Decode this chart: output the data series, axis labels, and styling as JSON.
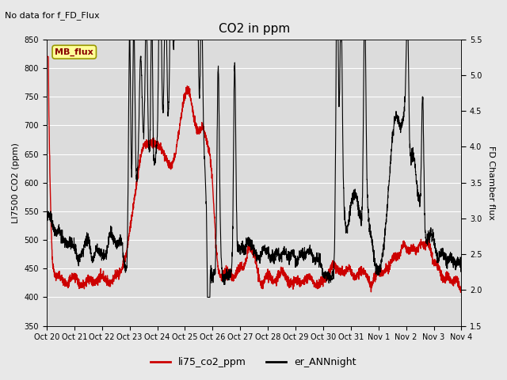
{
  "title": "CO2 in ppm",
  "top_left_text": "No data for f_FD_Flux",
  "ylabel_left": "LI7500 CO2 (ppm)",
  "ylabel_right": "FD Chamber flux",
  "ylim_left": [
    350,
    850
  ],
  "ylim_right": [
    1.5,
    5.5
  ],
  "yticks_left": [
    350,
    400,
    450,
    500,
    550,
    600,
    650,
    700,
    750,
    800,
    850
  ],
  "yticks_right": [
    1.5,
    2.0,
    2.5,
    3.0,
    3.5,
    4.0,
    4.5,
    5.0,
    5.5
  ],
  "xtick_labels": [
    "Oct 20",
    "Oct 21",
    "Oct 22",
    "Oct 23",
    "Oct 24",
    "Oct 25",
    "Oct 26",
    "Oct 27",
    "Oct 28",
    "Oct 29",
    "Oct 30",
    "Oct 31",
    "Nov 1",
    "Nov 2",
    "Nov 3",
    "Nov 4"
  ],
  "fig_facecolor": "#e8e8e8",
  "plot_facecolor": "#dcdcdc",
  "red_line_color": "#cc0000",
  "black_line_color": "#000000",
  "legend_items": [
    "li75_co2_ppm",
    "er_ANNnight"
  ],
  "legend_colors": [
    "#cc0000",
    "#000000"
  ],
  "mb_flux_box_color": "#ffff99",
  "mb_flux_box_edge": "#999900",
  "red_lw": 1.0,
  "black_lw": 0.8,
  "n_points": 3000,
  "grid_color": "#ffffff",
  "grid_lw": 0.8
}
